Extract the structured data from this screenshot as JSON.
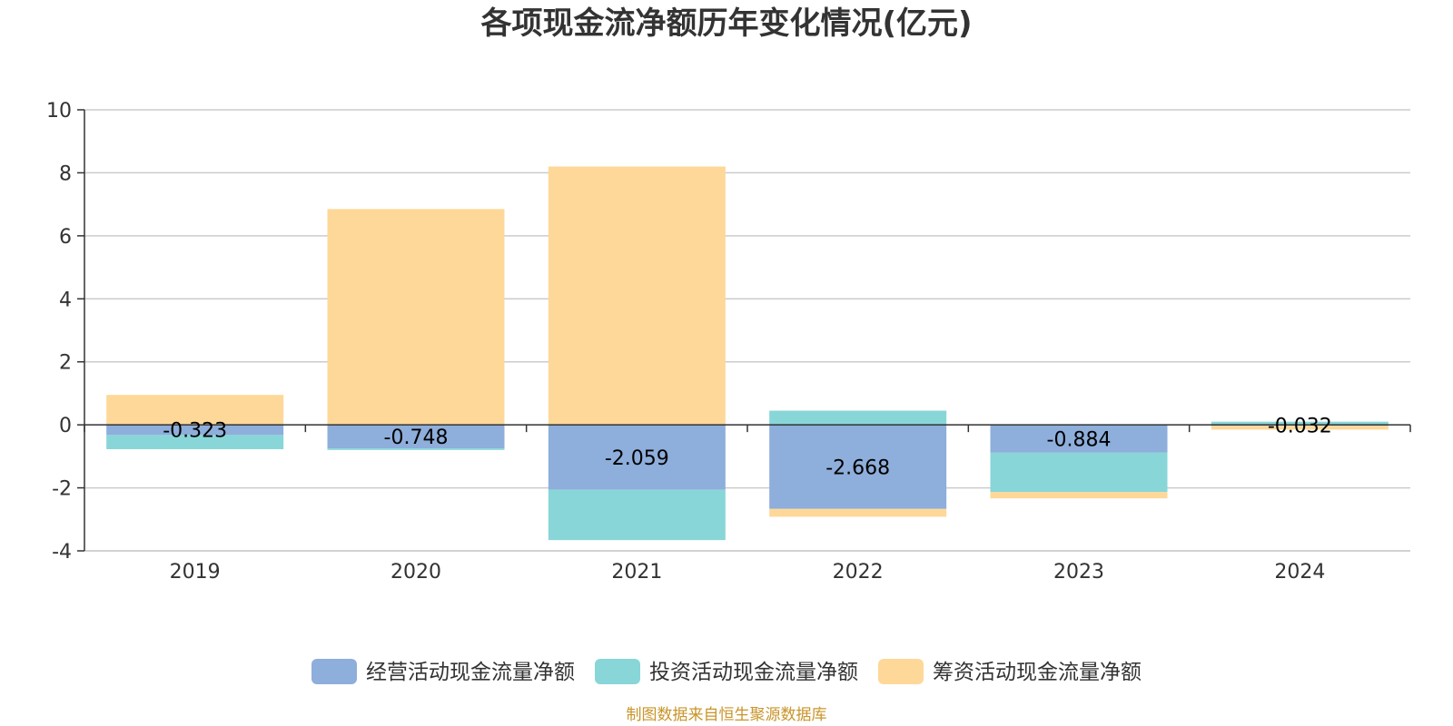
{
  "chart_data": {
    "type": "bar",
    "stacked": true,
    "title": "各项现金流净额历年变化情况(亿元)",
    "xlabel": "",
    "ylabel": "",
    "categories": [
      "2019",
      "2020",
      "2021",
      "2022",
      "2023",
      "2024"
    ],
    "ylim": [
      -4,
      10
    ],
    "yticks": [
      10,
      8,
      6,
      4,
      2,
      0,
      -2,
      -4
    ],
    "grid": true,
    "legend_position": "bottom-center",
    "series": [
      {
        "name": "经营活动现金流量净额",
        "color": "#8eaedb",
        "values": [
          -0.323,
          -0.748,
          -2.059,
          -2.668,
          -0.884,
          -0.032
        ],
        "labels": [
          "-0.323",
          "-0.748",
          "-2.059",
          "-2.668",
          "-0.884",
          "-0.032"
        ]
      },
      {
        "name": "投资活动现金流量净额",
        "color": "#88d6d8",
        "values": [
          -0.45,
          -0.05,
          -1.6,
          0.45,
          -1.25,
          0.1
        ]
      },
      {
        "name": "筹资活动现金流量净额",
        "color": "#fed898",
        "values": [
          0.95,
          6.85,
          8.2,
          -0.25,
          -0.2,
          -0.12
        ]
      }
    ]
  },
  "footer": {
    "source": "制图数据来自恒生聚源数据库"
  }
}
